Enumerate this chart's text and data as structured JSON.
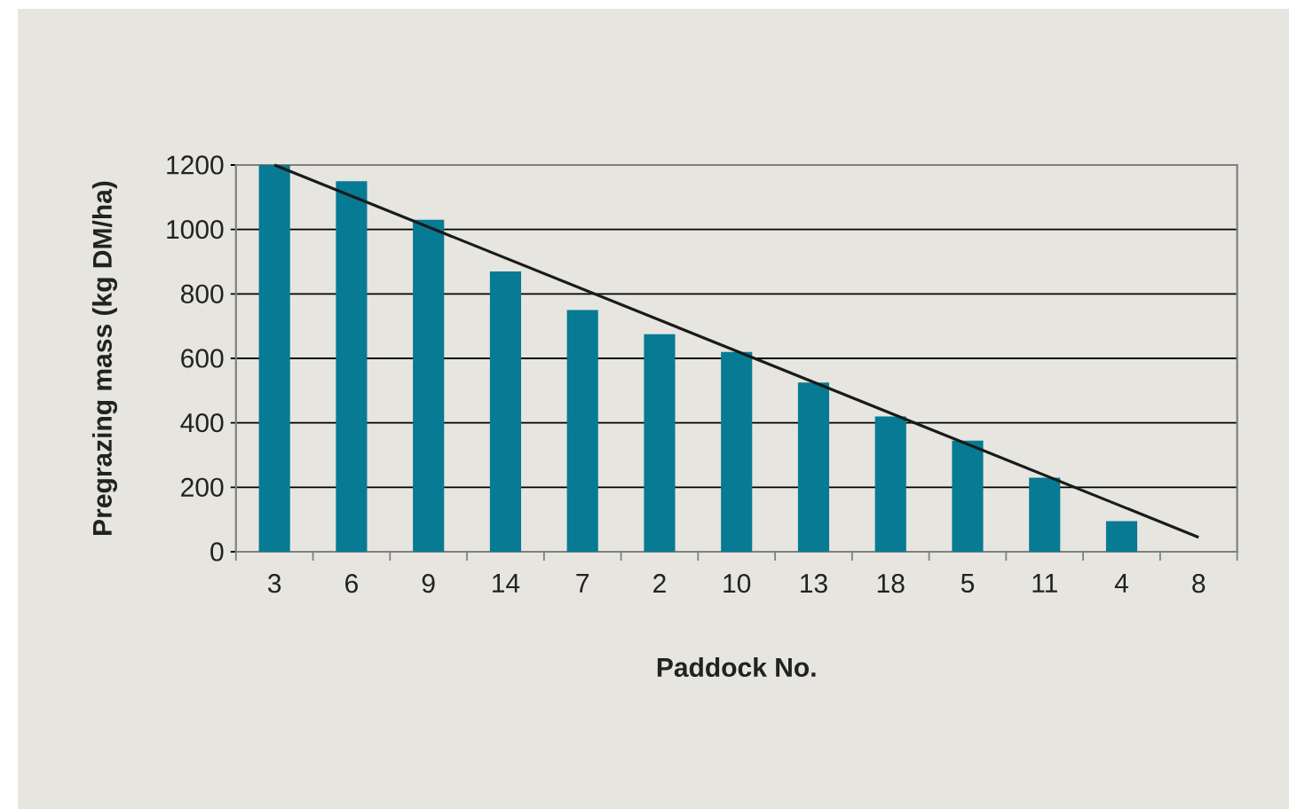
{
  "chart_data": {
    "type": "bar",
    "xlabel": "Paddock No.",
    "ylabel": "Pregrazing mass (kg DM/ha)",
    "categories": [
      "3",
      "6",
      "9",
      "14",
      "7",
      "2",
      "10",
      "13",
      "18",
      "5",
      "11",
      "4",
      "8"
    ],
    "series": [
      {
        "color": "#077b93",
        "values": [
          1200,
          1150,
          1030,
          870,
          750,
          675,
          620,
          525,
          420,
          345,
          230,
          95,
          null
        ]
      },
      {
        "type": "line",
        "color": "#1a1a1a",
        "x": [
          "3",
          "8"
        ],
        "values": [
          1200,
          45
        ]
      }
    ],
    "ylim": [
      0,
      1200
    ],
    "yticks": [
      0,
      200,
      400,
      600,
      800,
      1000,
      1200
    ],
    "grid": "y"
  }
}
